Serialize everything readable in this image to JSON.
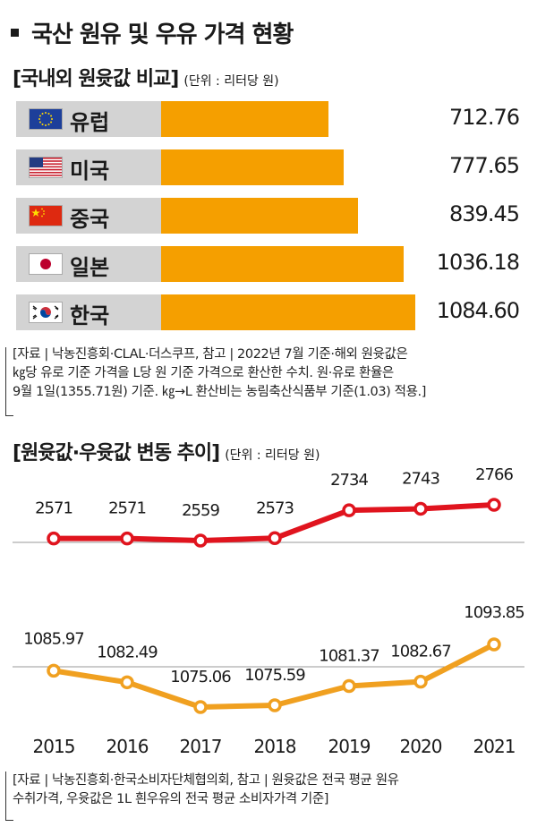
{
  "title": "국산 원유 및 우유 가격 현황",
  "section1": {
    "title": "[국내외 원윳값 비교]",
    "unit": "(단위 : 리터당 원)"
  },
  "section2": {
    "title": "[원윳값·우윳값 변동 추이]",
    "unit": "(단위 : 리터당 원)"
  },
  "note1": [
    "[자료 | 낙농진흥회·CLAL·더스쿠프, 참고 | 2022년 7월 기준·해외 원윳값은",
    "㎏당 유로 기준 가격을 L당 원 기준 가격으로 환산한 수치. 원·유로 환율은",
    "9월 1일(1355.71원) 기준. ㎏→L 환산비는 농림축산식품부 기준(1.03) 적용.]"
  ],
  "note2": [
    "[자료 | 낙농진흥회·한국소비자단체협의회, 참고 | 원윳값은 전국 평균 원유",
    "수취가격, 우윳값은 1L 흰우유의 전국 평균 소비자가격 기준]"
  ],
  "colors": {
    "bar": "#f59f00",
    "raw_milk_line": "#e0141e",
    "milk_line": "#f0a020",
    "label_bg": "#d3d3d3"
  },
  "chart_data": [
    {
      "type": "bar",
      "orientation": "horizontal",
      "categories": [
        "유럽",
        "미국",
        "중국",
        "일본",
        "한국"
      ],
      "flags": [
        "eu-flag-icon",
        "us-flag-icon",
        "china-flag-icon",
        "japan-flag-icon",
        "korea-flag-icon"
      ],
      "values": [
        712.76,
        777.65,
        839.45,
        1036.18,
        1084.6
      ],
      "value_labels": [
        "712.76",
        "777.65",
        "839.45",
        "1036.18",
        "1084.60"
      ]
    },
    {
      "type": "line",
      "x": [
        "2015",
        "2016",
        "2017",
        "2018",
        "2019",
        "2020",
        "2021"
      ],
      "series": [
        {
          "values": [
            2571,
            2571,
            2559,
            2573,
            2734,
            2743,
            2766
          ],
          "labels": [
            "2571",
            "2571",
            "2559",
            "2573",
            "2734",
            "2743",
            "2766"
          ]
        },
        {
          "values": [
            1085.97,
            1082.49,
            1075.06,
            1075.59,
            1081.37,
            1082.67,
            1093.85
          ],
          "labels": [
            "1085.97",
            "1082.49",
            "1075.06",
            "1075.59",
            "1081.37",
            "1082.67",
            "1093.85"
          ]
        }
      ]
    }
  ]
}
